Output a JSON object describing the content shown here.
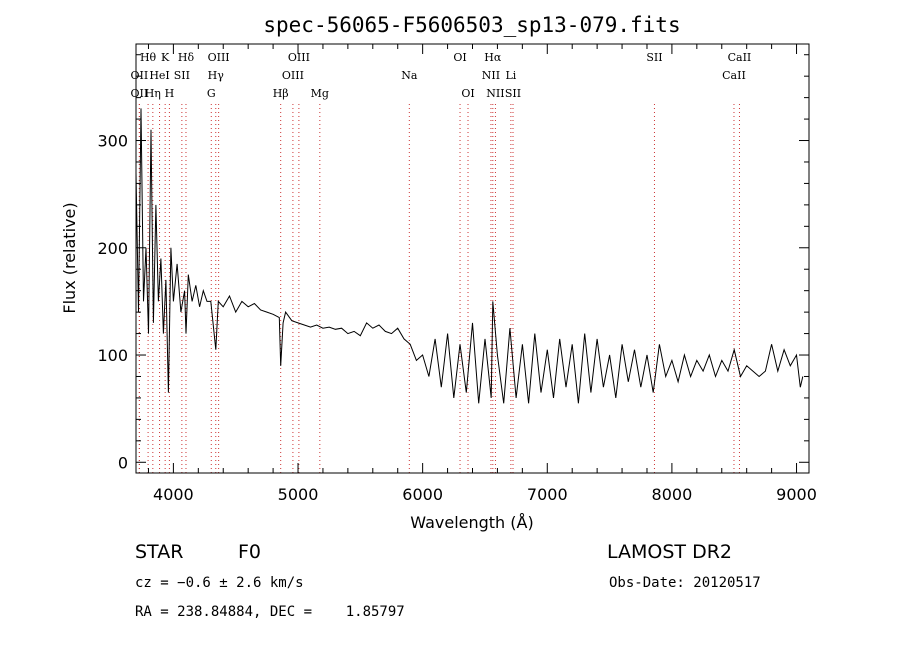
{
  "chart_data": {
    "type": "line",
    "title": "spec-56065-F5606503_sp13-079.fits",
    "xlabel": "Wavelength (Å)",
    "ylabel": "Flux (relative)",
    "xlim": [
      3700,
      9100
    ],
    "ylim": [
      -10,
      390
    ],
    "x_ticks": [
      4000,
      5000,
      6000,
      7000,
      8000,
      9000
    ],
    "y_ticks": [
      0,
      100,
      200,
      300
    ],
    "grid": false,
    "series": [
      {
        "x": [
          3700,
          3720,
          3740,
          3760,
          3780,
          3800,
          3820,
          3840,
          3860,
          3880,
          3900,
          3920,
          3940,
          3960,
          3980,
          4000,
          4030,
          4060,
          4090,
          4101,
          4120,
          4150,
          4180,
          4210,
          4240,
          4270,
          4300,
          4340,
          4360,
          4400,
          4450,
          4500,
          4550,
          4600,
          4650,
          4700,
          4750,
          4800,
          4850,
          4861,
          4880,
          4900,
          4950,
          5000,
          5050,
          5100,
          5150,
          5200,
          5250,
          5300,
          5350,
          5400,
          5450,
          5500,
          5550,
          5600,
          5650,
          5700,
          5750,
          5800,
          5850,
          5900,
          5950,
          6000,
          6050,
          6100,
          6150,
          6200,
          6250,
          6300,
          6350,
          6400,
          6450,
          6500,
          6550,
          6563,
          6600,
          6650,
          6700,
          6750,
          6800,
          6850,
          6900,
          6950,
          7000,
          7050,
          7100,
          7150,
          7200,
          7250,
          7300,
          7350,
          7400,
          7450,
          7500,
          7550,
          7600,
          7650,
          7700,
          7750,
          7800,
          7850,
          7900,
          7950,
          8000,
          8050,
          8100,
          8150,
          8200,
          8250,
          8300,
          8350,
          8400,
          8450,
          8500,
          8550,
          8600,
          8650,
          8700,
          8750,
          8800,
          8850,
          8900,
          8950,
          9000,
          9030,
          9050
        ],
        "y": [
          270,
          140,
          330,
          150,
          200,
          120,
          310,
          130,
          240,
          150,
          190,
          120,
          170,
          65,
          200,
          150,
          185,
          140,
          160,
          120,
          175,
          150,
          165,
          145,
          160,
          150,
          150,
          105,
          150,
          145,
          155,
          140,
          150,
          145,
          148,
          142,
          140,
          138,
          135,
          90,
          130,
          140,
          132,
          130,
          128,
          126,
          128,
          125,
          126,
          124,
          125,
          120,
          122,
          118,
          130,
          125,
          128,
          122,
          120,
          125,
          115,
          110,
          95,
          100,
          80,
          115,
          70,
          120,
          60,
          110,
          65,
          130,
          55,
          115,
          60,
          150,
          100,
          55,
          125,
          60,
          110,
          55,
          120,
          65,
          105,
          60,
          115,
          70,
          110,
          55,
          120,
          65,
          115,
          70,
          100,
          60,
          110,
          75,
          105,
          70,
          100,
          65,
          110,
          80,
          95,
          75,
          100,
          80,
          95,
          85,
          100,
          80,
          95,
          85,
          105,
          80,
          90,
          85,
          80,
          85,
          110,
          85,
          105,
          90,
          100,
          70,
          80
        ]
      }
    ],
    "line_marks": [
      {
        "label": "Hθ",
        "x": 3797,
        "row": 1
      },
      {
        "label": "K",
        "x": 3934,
        "row": 1
      },
      {
        "label": "Hδ",
        "x": 4101,
        "row": 1
      },
      {
        "label": "OIII",
        "x": 4363,
        "row": 1
      },
      {
        "label": "OIII",
        "x": 5007,
        "row": 1
      },
      {
        "label": "OI",
        "x": 6300,
        "row": 1
      },
      {
        "label": "Hα",
        "x": 6563,
        "row": 1
      },
      {
        "label": "SII",
        "x": 7860,
        "row": 1
      },
      {
        "label": "CaII",
        "x": 8542,
        "row": 1
      },
      {
        "label": "OII",
        "x": 3727,
        "row": 2
      },
      {
        "label": "HeI",
        "x": 3889,
        "row": 2
      },
      {
        "label": "SII",
        "x": 4068,
        "row": 2
      },
      {
        "label": "Hγ",
        "x": 4340,
        "row": 2
      },
      {
        "label": "OIII",
        "x": 4959,
        "row": 2
      },
      {
        "label": "Na",
        "x": 5893,
        "row": 2
      },
      {
        "label": "NII",
        "x": 6548,
        "row": 2
      },
      {
        "label": "Li",
        "x": 6708,
        "row": 2
      },
      {
        "label": "CaII",
        "x": 8498,
        "row": 2
      },
      {
        "label": "OII",
        "x": 3727,
        "row": 3
      },
      {
        "label": "Hη",
        "x": 3835,
        "row": 3
      },
      {
        "label": "H",
        "x": 3968,
        "row": 3
      },
      {
        "label": "G",
        "x": 4304,
        "row": 3
      },
      {
        "label": "Hβ",
        "x": 4861,
        "row": 3
      },
      {
        "label": "Mg",
        "x": 5175,
        "row": 3
      },
      {
        "label": "OI",
        "x": 6364,
        "row": 3
      },
      {
        "label": "NII",
        "x": 6584,
        "row": 3
      },
      {
        "label": "SII",
        "x": 6725,
        "row": 3
      }
    ]
  },
  "info": {
    "object_class": "STAR",
    "subclass": "F0",
    "survey": "LAMOST DR2",
    "cz": "cz = −0.6 ± 2.6 km/s",
    "obs_date": "Obs-Date: 20120517",
    "coords": "RA = 238.84884, DEC =    1.85797"
  }
}
